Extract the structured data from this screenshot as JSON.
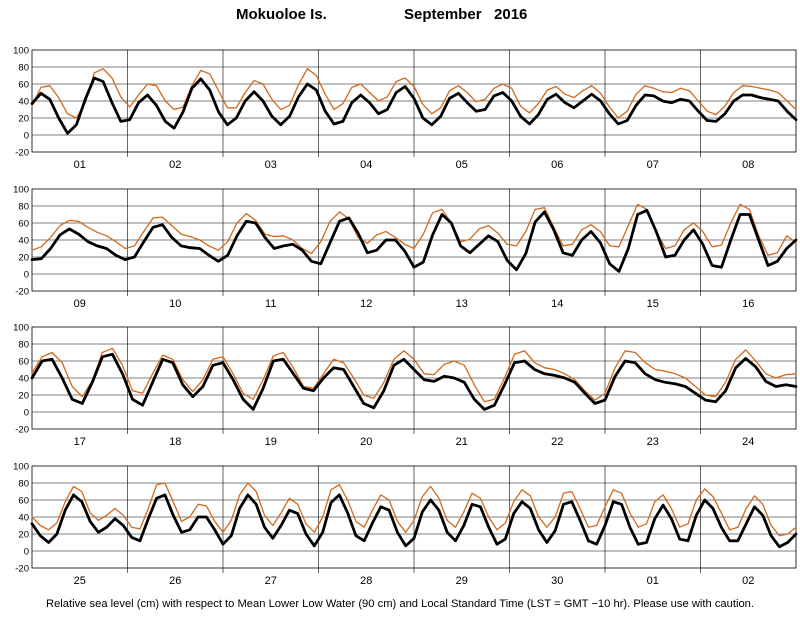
{
  "title": {
    "station": "Mokuoloe Is.",
    "month_year": "September   2016"
  },
  "footer": "Relative sea level (cm) with respect to Mean Lower Low Water (90 cm) and Local Standard Time (LST = GMT −10 hr). Please use with caution.",
  "colors": {
    "observed": "#d2691e",
    "predicted": "#000000",
    "grid": "#000000"
  },
  "chart_data": [
    {
      "type": "line",
      "ylim": [
        -20,
        100
      ],
      "yticks": [
        -20,
        0,
        20,
        40,
        60,
        80,
        100
      ],
      "x_labels": [
        "01",
        "02",
        "03",
        "04",
        "05",
        "06",
        "07",
        "08"
      ],
      "series": [
        {
          "key": "observed",
          "values": [
            34,
            56,
            58,
            44,
            25,
            20,
            38,
            73,
            78,
            67,
            45,
            33,
            47,
            60,
            58,
            40,
            30,
            33,
            58,
            76,
            72,
            52,
            32,
            32,
            50,
            64,
            60,
            42,
            30,
            35,
            59,
            78,
            70,
            48,
            30,
            37,
            56,
            60,
            50,
            40,
            45,
            63,
            67,
            57,
            36,
            25,
            32,
            52,
            58,
            50,
            39,
            42,
            55,
            60,
            55,
            34,
            26,
            37,
            53,
            57,
            48,
            44,
            52,
            58,
            49,
            33,
            20,
            28,
            48,
            58,
            55,
            51,
            50,
            55,
            52,
            40,
            28,
            24,
            34,
            50,
            58,
            57,
            55,
            53,
            50,
            40,
            30
          ]
        },
        {
          "key": "predicted",
          "values": [
            37,
            49,
            42,
            20,
            2,
            12,
            42,
            67,
            63,
            38,
            16,
            18,
            38,
            47,
            35,
            16,
            8,
            27,
            55,
            66,
            53,
            27,
            12,
            20,
            40,
            51,
            40,
            22,
            12,
            22,
            45,
            60,
            53,
            28,
            13,
            16,
            38,
            47,
            38,
            25,
            30,
            50,
            57,
            43,
            20,
            12,
            22,
            43,
            49,
            38,
            28,
            30,
            46,
            50,
            40,
            22,
            13,
            24,
            42,
            48,
            38,
            32,
            40,
            48,
            40,
            25,
            13,
            17,
            35,
            47,
            46,
            40,
            38,
            42,
            40,
            28,
            17,
            16,
            25,
            40,
            47,
            47,
            44,
            42,
            40,
            28,
            18
          ]
        }
      ]
    },
    {
      "type": "line",
      "ylim": [
        -20,
        100
      ],
      "yticks": [
        -20,
        0,
        20,
        40,
        60,
        80,
        100
      ],
      "x_labels": [
        "09",
        "10",
        "11",
        "12",
        "13",
        "14",
        "15",
        "16"
      ],
      "series": [
        {
          "key": "observed",
          "values": [
            28,
            32,
            43,
            57,
            63,
            62,
            55,
            49,
            45,
            38,
            30,
            33,
            50,
            66,
            67,
            57,
            47,
            44,
            40,
            33,
            28,
            38,
            60,
            71,
            63,
            47,
            44,
            45,
            40,
            30,
            24,
            38,
            62,
            73,
            65,
            43,
            36,
            46,
            50,
            43,
            35,
            30,
            47,
            72,
            76,
            60,
            38,
            41,
            53,
            57,
            48,
            35,
            33,
            50,
            76,
            78,
            55,
            33,
            35,
            52,
            58,
            50,
            33,
            32,
            57,
            82,
            76,
            50,
            30,
            33,
            52,
            60,
            50,
            32,
            34,
            60,
            82,
            76,
            45,
            22,
            25,
            45,
            37
          ]
        },
        {
          "key": "predicted",
          "values": [
            17,
            18,
            30,
            46,
            53,
            47,
            38,
            33,
            30,
            22,
            17,
            20,
            38,
            55,
            58,
            43,
            33,
            31,
            30,
            22,
            15,
            22,
            45,
            62,
            60,
            43,
            30,
            33,
            35,
            28,
            15,
            12,
            37,
            62,
            66,
            48,
            25,
            28,
            40,
            40,
            27,
            8,
            14,
            46,
            70,
            60,
            33,
            25,
            35,
            45,
            38,
            16,
            5,
            24,
            61,
            73,
            52,
            25,
            22,
            40,
            50,
            37,
            12,
            3,
            30,
            70,
            75,
            50,
            20,
            22,
            40,
            52,
            35,
            10,
            8,
            40,
            70,
            70,
            40,
            10,
            15,
            30,
            40
          ]
        }
      ]
    },
    {
      "type": "line",
      "ylim": [
        -20,
        100
      ],
      "yticks": [
        -20,
        0,
        20,
        40,
        60,
        80,
        100
      ],
      "x_labels": [
        "17",
        "18",
        "19",
        "20",
        "21",
        "22",
        "23",
        "24"
      ],
      "series": [
        {
          "key": "observed",
          "values": [
            46,
            65,
            70,
            58,
            30,
            18,
            37,
            70,
            75,
            55,
            25,
            22,
            45,
            67,
            62,
            38,
            24,
            38,
            62,
            65,
            45,
            22,
            15,
            38,
            66,
            70,
            52,
            30,
            28,
            45,
            62,
            58,
            40,
            20,
            16,
            35,
            62,
            72,
            62,
            45,
            44,
            56,
            60,
            55,
            32,
            12,
            15,
            40,
            68,
            72,
            58,
            52,
            50,
            45,
            38,
            25,
            14,
            22,
            52,
            72,
            70,
            58,
            50,
            48,
            45,
            40,
            30,
            20,
            18,
            35,
            62,
            73,
            60,
            45,
            40,
            44,
            45
          ]
        },
        {
          "key": "predicted",
          "values": [
            40,
            60,
            62,
            40,
            15,
            10,
            35,
            65,
            68,
            45,
            15,
            8,
            35,
            62,
            58,
            32,
            18,
            30,
            55,
            58,
            38,
            15,
            3,
            28,
            60,
            62,
            45,
            28,
            25,
            40,
            52,
            50,
            30,
            10,
            5,
            25,
            55,
            62,
            50,
            38,
            36,
            42,
            40,
            35,
            15,
            3,
            8,
            32,
            58,
            60,
            50,
            45,
            43,
            40,
            35,
            22,
            10,
            14,
            42,
            60,
            58,
            45,
            38,
            35,
            33,
            30,
            22,
            14,
            12,
            25,
            52,
            63,
            53,
            36,
            30,
            32,
            30
          ]
        }
      ]
    },
    {
      "type": "line",
      "ylim": [
        -20,
        100
      ],
      "yticks": [
        -20,
        0,
        20,
        40,
        60,
        80,
        100
      ],
      "x_labels": [
        "25",
        "26",
        "27",
        "28",
        "29",
        "30",
        "01",
        "02"
      ],
      "series": [
        {
          "key": "observed",
          "values": [
            40,
            30,
            25,
            33,
            58,
            76,
            70,
            45,
            36,
            42,
            50,
            42,
            28,
            26,
            50,
            78,
            80,
            58,
            35,
            40,
            55,
            53,
            35,
            22,
            36,
            66,
            80,
            70,
            42,
            30,
            45,
            62,
            55,
            32,
            22,
            40,
            72,
            78,
            60,
            35,
            28,
            48,
            66,
            60,
            35,
            22,
            36,
            64,
            76,
            62,
            36,
            28,
            46,
            68,
            62,
            40,
            25,
            33,
            58,
            72,
            65,
            40,
            28,
            40,
            68,
            70,
            50,
            28,
            30,
            52,
            72,
            68,
            45,
            28,
            32,
            58,
            66,
            50,
            28,
            32,
            60,
            73,
            64,
            45,
            25,
            28,
            50,
            65,
            55,
            30,
            18,
            20,
            28
          ]
        },
        {
          "key": "predicted",
          "values": [
            32,
            18,
            10,
            20,
            48,
            66,
            58,
            35,
            22,
            28,
            38,
            30,
            16,
            12,
            38,
            62,
            66,
            42,
            22,
            25,
            40,
            40,
            25,
            8,
            18,
            50,
            66,
            55,
            28,
            15,
            30,
            48,
            44,
            20,
            6,
            22,
            57,
            66,
            45,
            18,
            12,
            33,
            52,
            48,
            22,
            6,
            15,
            46,
            60,
            48,
            22,
            12,
            30,
            55,
            52,
            28,
            8,
            14,
            44,
            58,
            50,
            25,
            10,
            24,
            55,
            58,
            36,
            12,
            8,
            30,
            58,
            55,
            28,
            8,
            10,
            38,
            54,
            38,
            14,
            12,
            42,
            60,
            50,
            28,
            12,
            12,
            32,
            52,
            42,
            18,
            5,
            10,
            20
          ]
        }
      ]
    }
  ]
}
